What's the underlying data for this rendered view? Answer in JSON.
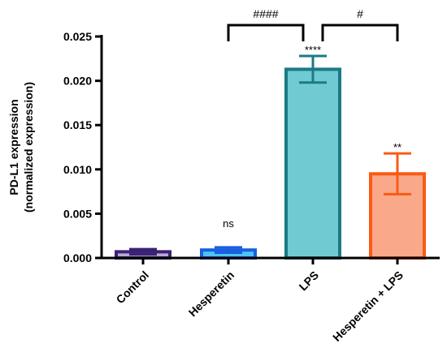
{
  "chart_data": {
    "type": "bar",
    "title": "",
    "xlabel": "",
    "ylabel_lines": [
      "PD-L1 expression",
      "(normalized expression)"
    ],
    "ylim": [
      0,
      0.025
    ],
    "yticks": [
      "0.000",
      "0.005",
      "0.010",
      "0.015",
      "0.020",
      "0.025"
    ],
    "categories": [
      "Control",
      "Hesperetin",
      "LPS",
      "Hesperetin + LPS"
    ],
    "values": [
      0.0007,
      0.0009,
      0.0213,
      0.0095
    ],
    "errors": [
      0.0003,
      0.0003,
      0.0015,
      0.0023
    ],
    "bar_fill_colors": [
      "#b9a6d8",
      "#4bc3f5",
      "#6fcbd1",
      "#f9a98a"
    ],
    "bar_edge_colors": [
      "#3b2273",
      "#1a5fe0",
      "#1b7a86",
      "#fa5a14"
    ],
    "annotations": [
      "",
      "ns",
      "****",
      "**"
    ],
    "comparisons": [
      {
        "from": 1,
        "to": 2,
        "label": "####"
      },
      {
        "from": 2,
        "to": 3,
        "label": "#"
      }
    ]
  }
}
